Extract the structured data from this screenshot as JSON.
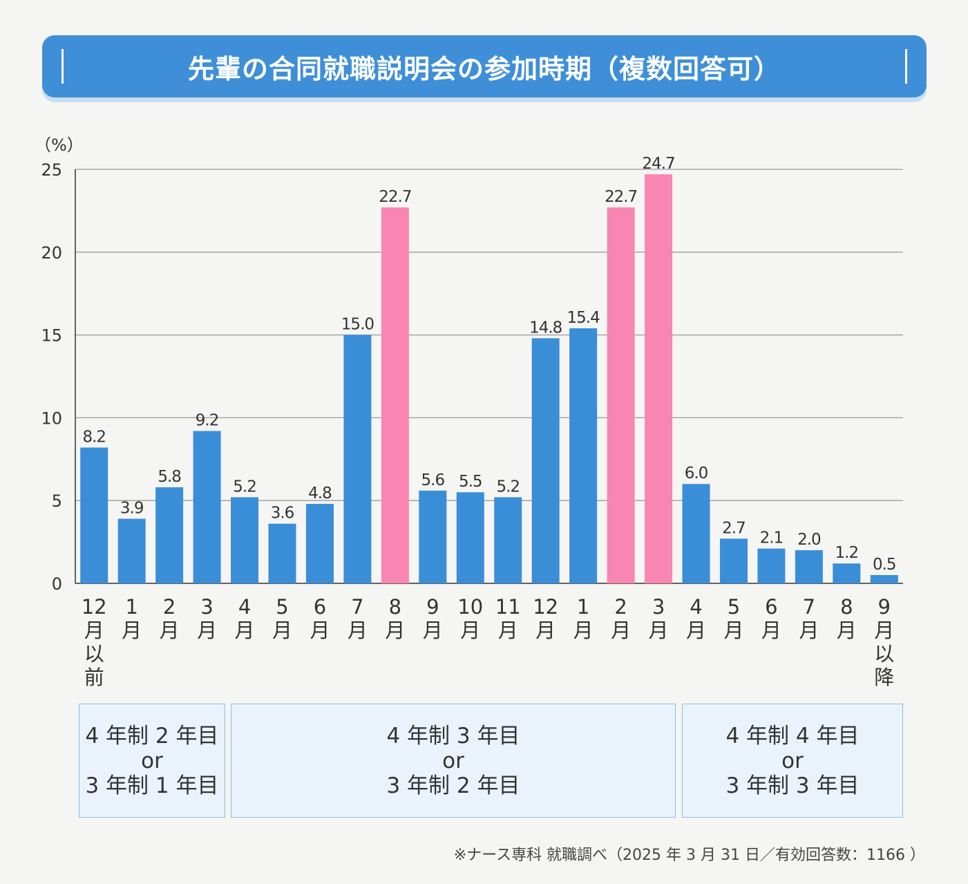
{
  "title": "先輩の合同就職説明会の参加時期（複数回答可）",
  "chart_data": {
    "type": "bar",
    "ylabel": "（%）",
    "ylim": [
      0,
      25
    ],
    "yticks": [
      0,
      5,
      10,
      15,
      20,
      25
    ],
    "grid": true,
    "categories": [
      "12月以前",
      "1月",
      "2月",
      "3月",
      "4月",
      "5月",
      "6月",
      "7月",
      "8月",
      "9月",
      "10月",
      "11月",
      "12月",
      "1月",
      "2月",
      "3月",
      "4月",
      "5月",
      "6月",
      "7月",
      "8月",
      "9月以降"
    ],
    "category_lines": [
      [
        "12",
        "月",
        "以",
        "前"
      ],
      [
        "1",
        "月"
      ],
      [
        "2",
        "月"
      ],
      [
        "3",
        "月"
      ],
      [
        "4",
        "月"
      ],
      [
        "5",
        "月"
      ],
      [
        "6",
        "月"
      ],
      [
        "7",
        "月"
      ],
      [
        "8",
        "月"
      ],
      [
        "9",
        "月"
      ],
      [
        "10",
        "月"
      ],
      [
        "11",
        "月"
      ],
      [
        "12",
        "月"
      ],
      [
        "1",
        "月"
      ],
      [
        "2",
        "月"
      ],
      [
        "3",
        "月"
      ],
      [
        "4",
        "月"
      ],
      [
        "5",
        "月"
      ],
      [
        "6",
        "月"
      ],
      [
        "7",
        "月"
      ],
      [
        "8",
        "月"
      ],
      [
        "9",
        "月",
        "以",
        "降"
      ]
    ],
    "values": [
      8.2,
      3.9,
      5.8,
      9.2,
      5.2,
      3.6,
      4.8,
      15.0,
      22.7,
      5.6,
      5.5,
      5.2,
      14.8,
      15.4,
      22.7,
      24.7,
      6.0,
      2.7,
      2.1,
      2.0,
      1.2,
      0.5
    ],
    "value_labels": [
      "8.2",
      "3.9",
      "5.8",
      "9.2",
      "5.2",
      "3.6",
      "4.8",
      "15.0",
      "22.7",
      "5.6",
      "5.5",
      "5.2",
      "14.8",
      "15.4",
      "22.7",
      "24.7",
      "6.0",
      "2.7",
      "2.1",
      "2.0",
      "1.2",
      "0.5"
    ],
    "highlighted": [
      8,
      14,
      15
    ],
    "colors": {
      "default": "#3a8ed8",
      "highlight": "#f986b2",
      "grid": "#9a9a9a",
      "axis": "#333333"
    }
  },
  "groups": [
    {
      "lines": [
        "4 年制 2 年目",
        "or",
        "3 年制 1 年目"
      ]
    },
    {
      "lines": [
        "4 年制 3 年目",
        "or",
        "3 年制 2 年目"
      ]
    },
    {
      "lines": [
        "4 年制 4 年目",
        "or",
        "3 年制 3 年目"
      ]
    }
  ],
  "footnote": "※ナース専科 就職調べ（2025 年 3 月 31 日／有効回答数：1166 ）"
}
